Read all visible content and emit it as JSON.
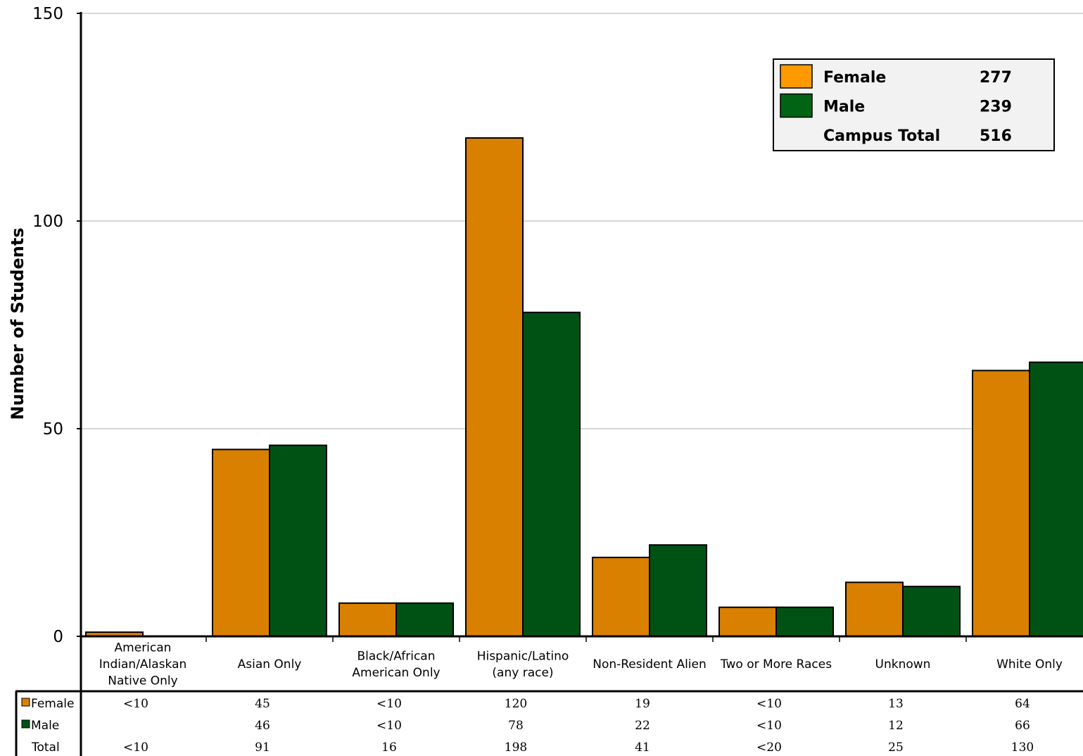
{
  "chart_data": {
    "type": "bar",
    "ylabel": "Number of Students",
    "ylim": [
      0,
      150
    ],
    "yticks": [
      0,
      50,
      100,
      150
    ],
    "grid": true,
    "legend_position": "top-right",
    "categories": [
      [
        "American",
        "Indian/Alaskan",
        "Native Only"
      ],
      [
        "Asian Only"
      ],
      [
        "Black/African",
        "American Only"
      ],
      [
        "Hispanic/Latino",
        "(any race)"
      ],
      [
        "Non-Resident Alien"
      ],
      [
        "Two or More Races"
      ],
      [
        "Unknown"
      ],
      [
        "White Only"
      ]
    ],
    "series": [
      {
        "name": "Female",
        "color": "#D98000",
        "values": [
          1,
          45,
          8,
          120,
          19,
          7,
          13,
          64
        ],
        "table": [
          "<10",
          "45",
          "<10",
          "120",
          "19",
          "<10",
          "13",
          "64"
        ]
      },
      {
        "name": "Male",
        "color": "#005214",
        "values": [
          0,
          46,
          8,
          78,
          22,
          7,
          12,
          66
        ],
        "table": [
          "",
          "46",
          "<10",
          "78",
          "22",
          "<10",
          "12",
          "66"
        ]
      }
    ],
    "total_row": {
      "name": "Total",
      "table": [
        "<10",
        "91",
        "16",
        "198",
        "41",
        "<20",
        "25",
        "130"
      ]
    },
    "legend": {
      "entries": [
        {
          "label": "Female",
          "value": "277",
          "color": "#FF9900"
        },
        {
          "label": "Male",
          "value": "239",
          "color": "#006414"
        },
        {
          "label": "Campus Total",
          "value": "516"
        }
      ]
    }
  }
}
